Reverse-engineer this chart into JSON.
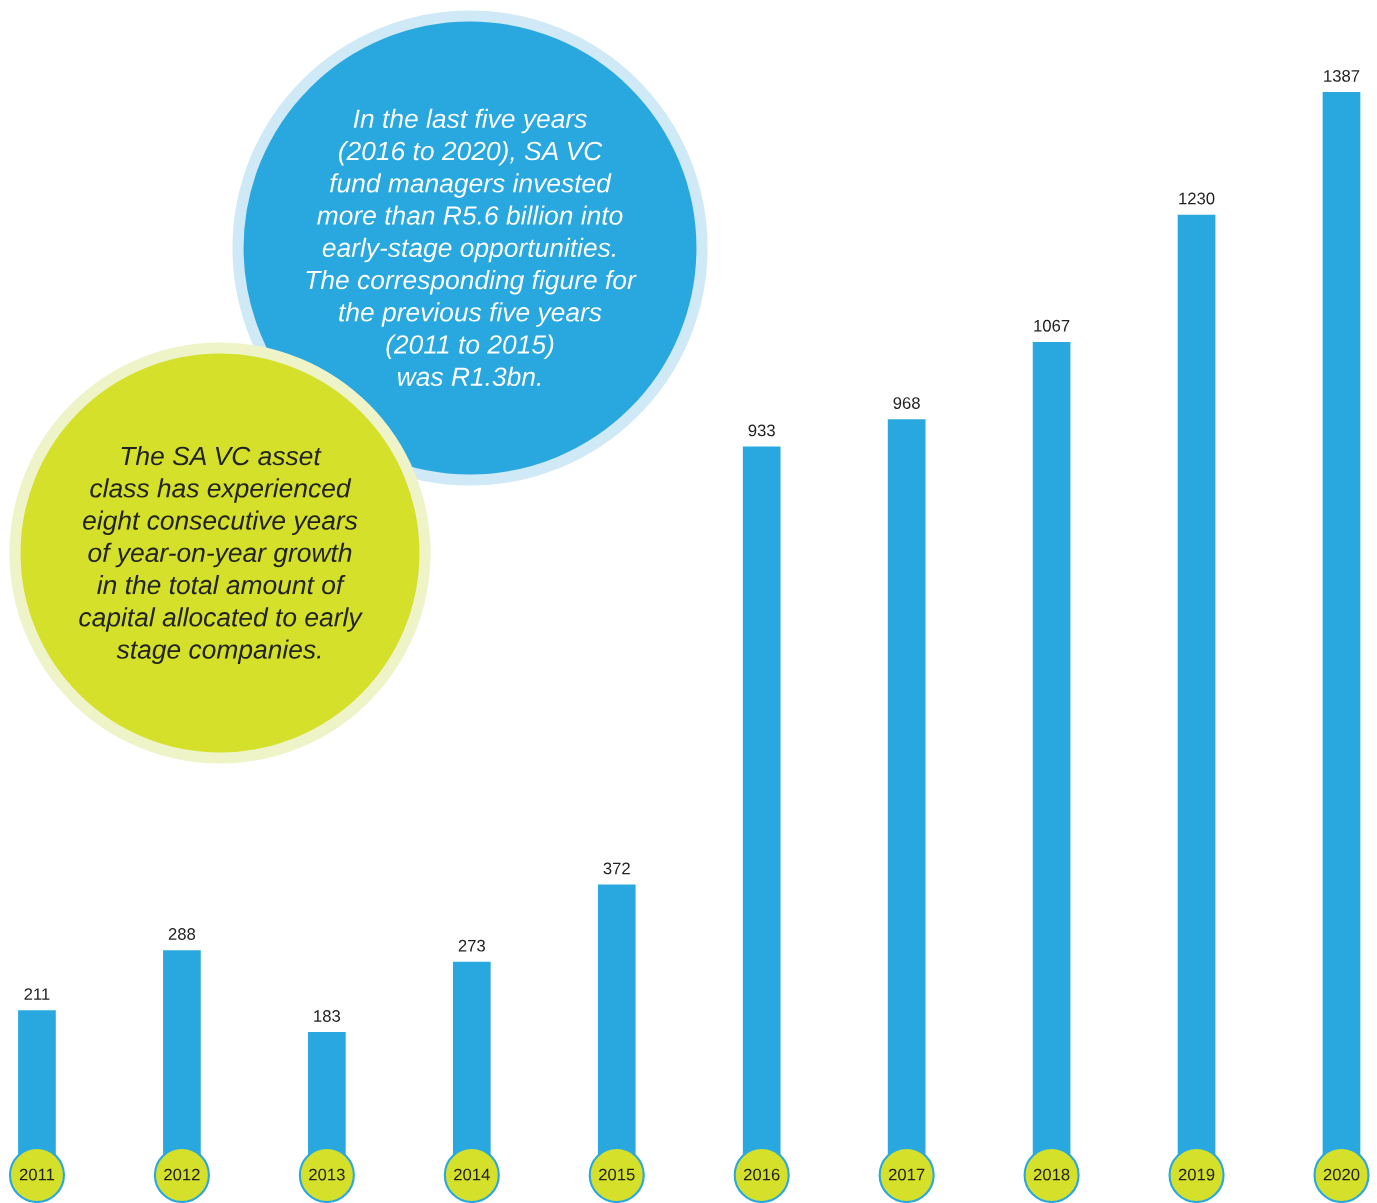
{
  "chart_data": {
    "type": "bar",
    "categories": [
      "2011",
      "2012",
      "2013",
      "2014",
      "2015",
      "2016",
      "2017",
      "2018",
      "2019",
      "2020"
    ],
    "values": [
      211,
      288,
      183,
      273,
      372,
      933,
      968,
      1067,
      1230,
      1387
    ],
    "color": "#29a8e0",
    "data_labels": true,
    "annotations": [
      "In the last five years\n(2016 to 2020), SA VC\nfund managers invested\nmore than R5.6 billion into\nearly-stage opportunities.\nThe corresponding figure for\nthe previous five years\n(2011 to 2015)\nwas R1.3bn.",
      "The SA VC asset\nclass has experienced\neight consecutive years\nof year-on-year growth\nin the total amount of\ncapital allocated to early\nstage companies."
    ]
  }
}
